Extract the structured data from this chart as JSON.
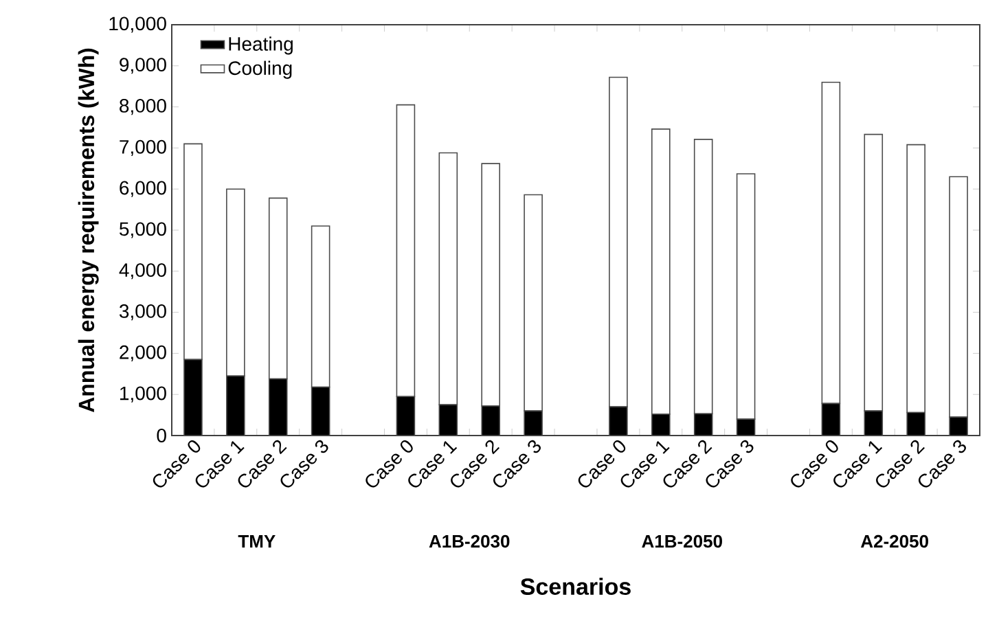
{
  "chart_data": {
    "type": "bar",
    "stacked": true,
    "xlabel": "Scenarios",
    "ylabel": "Annual energy requirements (kWh)",
    "categories": [
      "Case 0",
      "Case 1",
      "Case 2",
      "Case 3",
      null,
      "Case 0",
      "Case 1",
      "Case 2",
      "Case 3",
      null,
      "Case 0",
      "Case 1",
      "Case 2",
      "Case 3",
      null,
      "Case 0",
      "Case 1",
      "Case 2",
      "Case 3"
    ],
    "series": [
      {
        "name": "Heating",
        "color": "#000000",
        "values": [
          1850,
          1450,
          1380,
          1180,
          null,
          950,
          750,
          720,
          600,
          null,
          700,
          520,
          530,
          400,
          null,
          780,
          600,
          560,
          450
        ]
      },
      {
        "name": "Cooling",
        "color": "#ffffff",
        "values": [
          5250,
          4550,
          4400,
          3920,
          null,
          7100,
          6130,
          5900,
          5260,
          null,
          8020,
          6940,
          6680,
          5970,
          null,
          7820,
          6730,
          6520,
          5850
        ]
      }
    ],
    "annotations": [
      "TMY",
      "A1B-2030",
      "A1B-2050",
      "A2-2050"
    ],
    "ylim": [
      0,
      10000
    ],
    "yticks": [
      {
        "value": 0,
        "label": "0"
      },
      {
        "value": 1000,
        "label": "1,000"
      },
      {
        "value": 2000,
        "label": "2,000"
      },
      {
        "value": 3000,
        "label": "3,000"
      },
      {
        "value": 4000,
        "label": "4,000"
      },
      {
        "value": 5000,
        "label": "5,000"
      },
      {
        "value": 6000,
        "label": "6,000"
      },
      {
        "value": 7000,
        "label": "7,000"
      },
      {
        "value": 8000,
        "label": "8,000"
      },
      {
        "value": 9000,
        "label": "9,000"
      },
      {
        "value": 10000,
        "label": "10,000"
      }
    ],
    "legend": "top left",
    "grid": false
  }
}
